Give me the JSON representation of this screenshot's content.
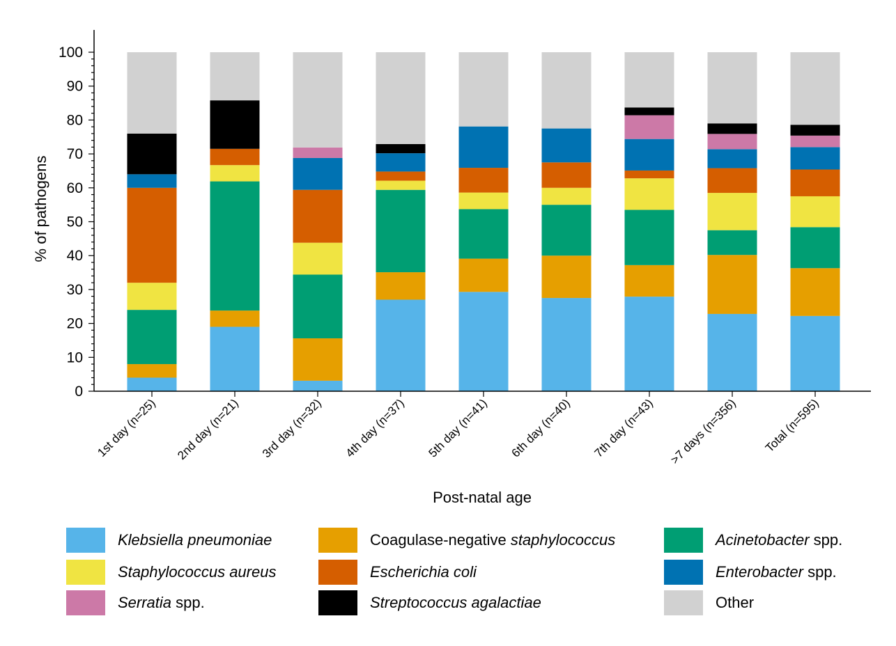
{
  "chart_data": {
    "type": "bar",
    "stacked": true,
    "ylabel": "% of pathogens",
    "xlabel": "Post-natal age",
    "ylim": [
      0,
      100
    ],
    "yticks": [
      "0",
      "10",
      "20",
      "30",
      "40",
      "50",
      "60",
      "70",
      "80",
      "90",
      "100"
    ],
    "categories": [
      "1st day (n=25)",
      "2nd day (n=21)",
      "3rd day (n=32)",
      "4th day (n=37)",
      "5th day (n=41)",
      "6th day (n=40)",
      "7th day (n=43)",
      ">7 days (n=356)",
      "Total (n=595)"
    ],
    "series": [
      {
        "name": "Klebsiella pneumoniae",
        "color": "#56b4e9",
        "values": [
          4,
          19,
          3.1,
          27,
          29.3,
          27.5,
          27.9,
          22.8,
          22.2
        ]
      },
      {
        "name": "Coagulase-negative staphylococcus",
        "color": "#e69f00",
        "values": [
          4,
          4.8,
          12.5,
          8.1,
          9.8,
          12.5,
          9.3,
          17.4,
          14.1
        ]
      },
      {
        "name": "Acinetobacter spp.",
        "color": "#009e73",
        "values": [
          16,
          38.1,
          18.8,
          24.3,
          14.6,
          15,
          16.3,
          7.3,
          12.1
        ]
      },
      {
        "name": "Staphylococcus aureus",
        "color": "#f0e442",
        "values": [
          8,
          4.8,
          9.4,
          2.7,
          4.9,
          5,
          9.3,
          11,
          9.1
        ]
      },
      {
        "name": "Escherichia coli",
        "color": "#d55e00",
        "values": [
          28,
          4.8,
          15.6,
          2.7,
          7.3,
          7.5,
          2.3,
          7.3,
          7.9
        ]
      },
      {
        "name": "Enterobacter spp.",
        "color": "#0072b2",
        "values": [
          4,
          0,
          9.4,
          5.4,
          12.2,
          10,
          9.3,
          5.6,
          6.6
        ]
      },
      {
        "name": "Serratia spp.",
        "color": "#cc79a7",
        "values": [
          0,
          0,
          3.1,
          0,
          0,
          0,
          7,
          4.5,
          3.4
        ]
      },
      {
        "name": "Streptococcus agalactiae",
        "color": "#000000",
        "values": [
          12,
          14.3,
          0,
          2.7,
          0,
          0,
          2.3,
          3.1,
          3.2
        ]
      },
      {
        "name": "Other",
        "color": "#d1d1d1",
        "values": [
          24,
          14.2,
          28.1,
          27.1,
          21.9,
          22.5,
          16.3,
          21,
          21.4
        ]
      }
    ]
  },
  "legend": [
    {
      "color": "#56b4e9",
      "parts": [
        {
          "text": "Klebsiella pneumoniae",
          "italic": true
        }
      ]
    },
    {
      "color": "#e69f00",
      "parts": [
        {
          "text": "Coagulase-negative ",
          "italic": false
        },
        {
          "text": "staphylococcus",
          "italic": true
        }
      ]
    },
    {
      "color": "#009e73",
      "parts": [
        {
          "text": "Acinetobacter",
          "italic": true
        },
        {
          "text": " spp.",
          "italic": false
        }
      ]
    },
    {
      "color": "#f0e442",
      "parts": [
        {
          "text": "Staphylococcus aureus",
          "italic": true
        }
      ]
    },
    {
      "color": "#d55e00",
      "parts": [
        {
          "text": "Escherichia coli",
          "italic": true
        }
      ]
    },
    {
      "color": "#0072b2",
      "parts": [
        {
          "text": "Enterobacter",
          "italic": true
        },
        {
          "text": " spp.",
          "italic": false
        }
      ]
    },
    {
      "color": "#cc79a7",
      "parts": [
        {
          "text": "Serratia",
          "italic": true
        },
        {
          "text": " spp.",
          "italic": false
        }
      ]
    },
    {
      "color": "#000000",
      "parts": [
        {
          "text": "Streptococcus agalactiae",
          "italic": true
        }
      ]
    },
    {
      "color": "#d1d1d1",
      "parts": [
        {
          "text": "Other",
          "italic": false
        }
      ]
    }
  ]
}
